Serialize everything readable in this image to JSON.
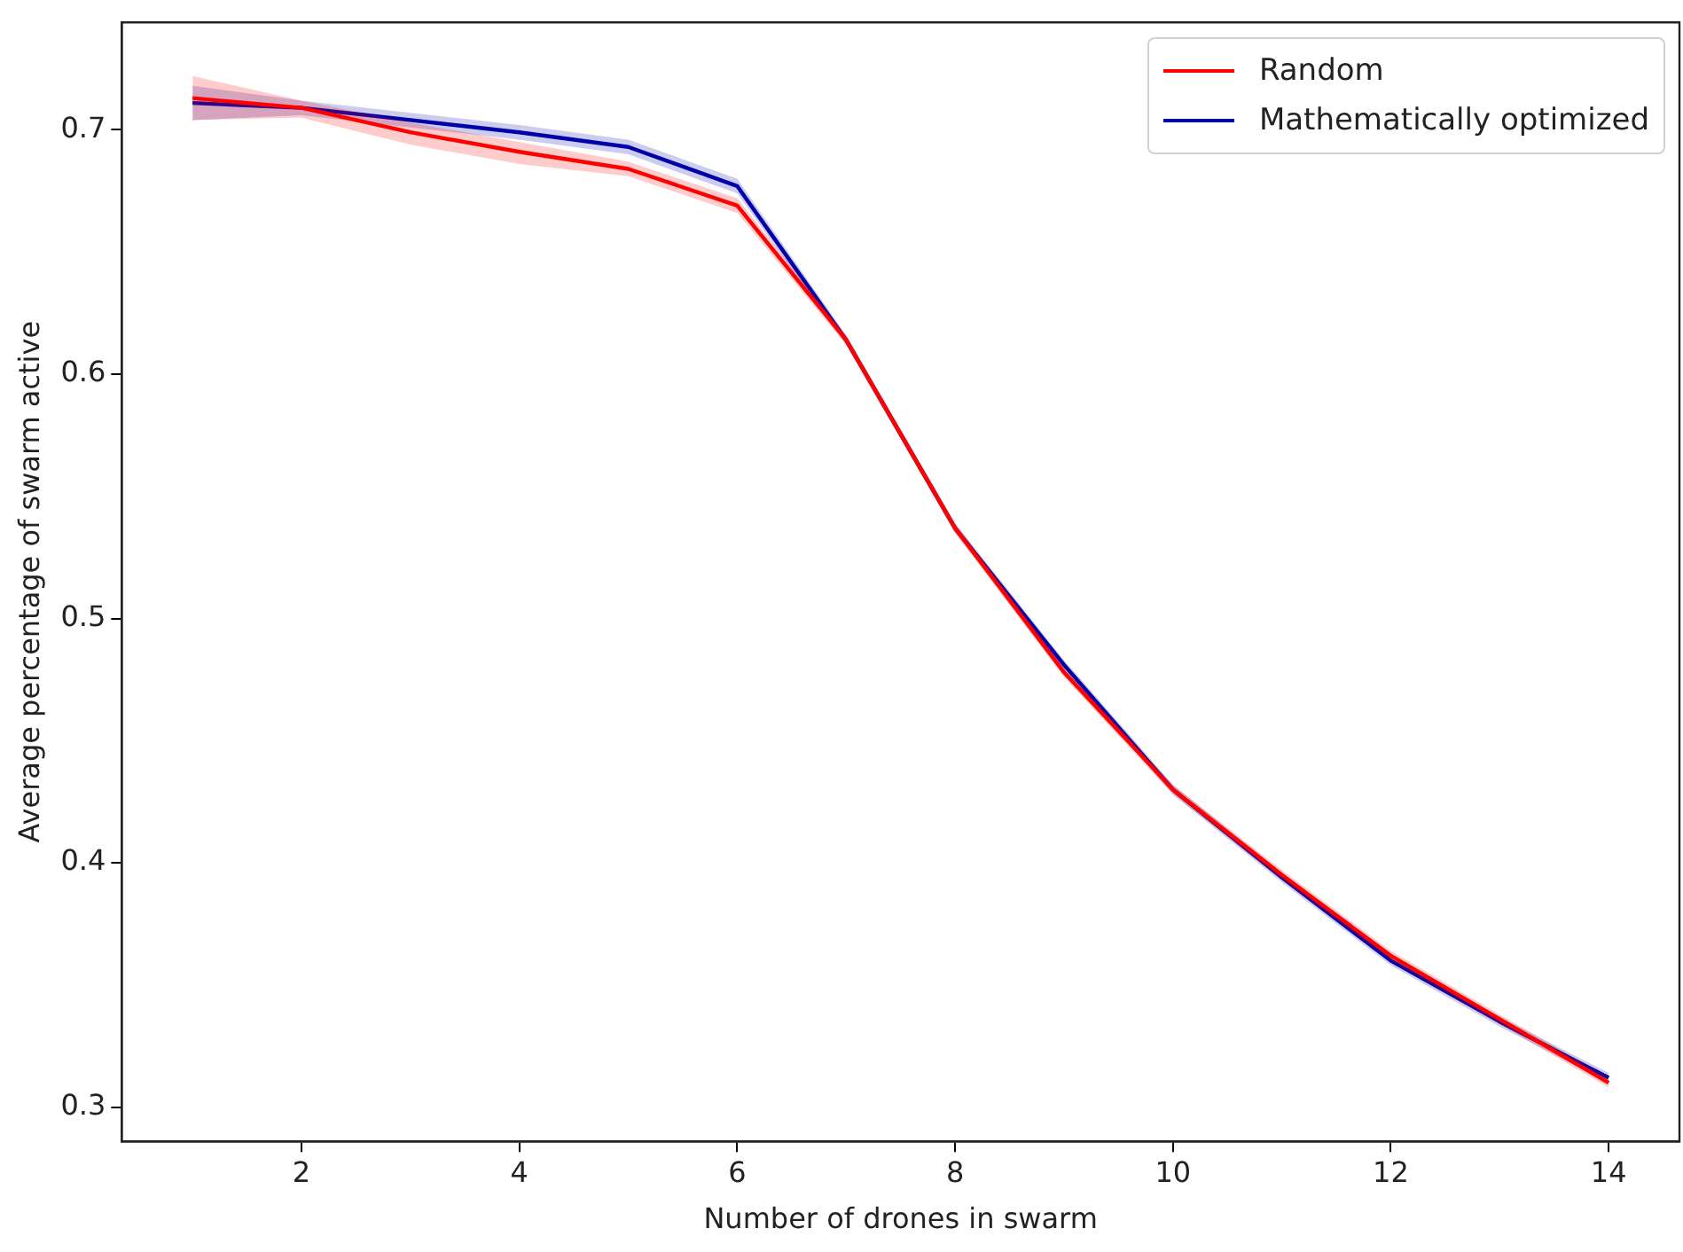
{
  "chart_data": {
    "type": "line",
    "xlabel": "Number of drones in swarm",
    "ylabel": "Average percentage of swarm active",
    "x": [
      1,
      2,
      3,
      4,
      5,
      6,
      7,
      8,
      9,
      10,
      11,
      12,
      13,
      14
    ],
    "xlim": [
      0.35,
      14.65
    ],
    "xticks": [
      2,
      4,
      6,
      8,
      10,
      12,
      14
    ],
    "ylim": [
      0.286,
      0.744
    ],
    "yticks": [
      0.3,
      0.4,
      0.5,
      0.6,
      0.7
    ],
    "grid": false,
    "legend": "top right",
    "marker": "none",
    "line_style": "solid",
    "series": [
      {
        "name": "Random",
        "color": "#ff0000",
        "values": [
          0.713,
          0.709,
          0.699,
          0.691,
          0.684,
          0.669,
          0.614,
          0.537,
          0.478,
          0.43,
          0.395,
          0.362,
          0.336,
          0.31
        ],
        "lower": [
          0.704,
          0.705,
          0.694,
          0.686,
          0.681,
          0.666,
          0.612,
          0.535,
          0.476,
          0.428,
          0.393,
          0.36,
          0.334,
          0.308
        ],
        "upper": [
          0.722,
          0.712,
          0.703,
          0.695,
          0.687,
          0.672,
          0.616,
          0.539,
          0.48,
          0.432,
          0.397,
          0.364,
          0.338,
          0.312
        ]
      },
      {
        "name": "Mathematically optimized",
        "color": "#0000aa",
        "values": [
          0.711,
          0.709,
          0.704,
          0.699,
          0.693,
          0.677,
          0.614,
          0.537,
          0.481,
          0.43,
          0.394,
          0.36,
          0.335,
          0.312
        ],
        "lower": [
          0.704,
          0.706,
          0.701,
          0.696,
          0.69,
          0.674,
          0.612,
          0.535,
          0.479,
          0.428,
          0.392,
          0.358,
          0.333,
          0.31
        ],
        "upper": [
          0.718,
          0.712,
          0.707,
          0.702,
          0.696,
          0.68,
          0.616,
          0.539,
          0.483,
          0.432,
          0.396,
          0.362,
          0.337,
          0.314
        ]
      }
    ]
  }
}
